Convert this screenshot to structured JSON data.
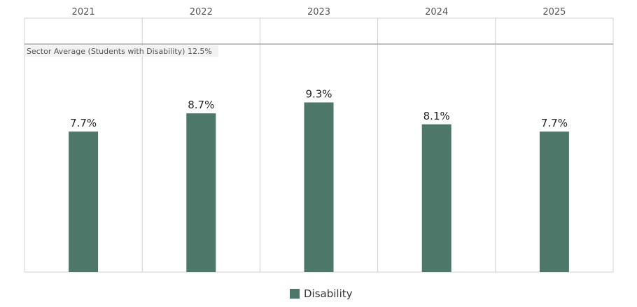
{
  "chart_data": {
    "type": "bar",
    "categories": [
      "2021",
      "2022",
      "2023",
      "2024",
      "2025"
    ],
    "series": [
      {
        "name": "Disability",
        "values": [
          7.7,
          8.7,
          9.3,
          8.1,
          7.7
        ]
      }
    ],
    "value_labels": [
      "7.7%",
      "8.7%",
      "9.3%",
      "8.1%",
      "7.7%"
    ],
    "ylim": [
      0,
      12.5
    ],
    "reference_line": {
      "label": "Sector Average (Students with Disability) 12.5%",
      "value": 12.5
    },
    "legend": {
      "position": "bottom-center",
      "label": "Disability"
    },
    "colors": {
      "bar": "#4d7869",
      "grid": "#d0d0d0",
      "ref_band": "#f2f2f2"
    },
    "grid": true
  }
}
